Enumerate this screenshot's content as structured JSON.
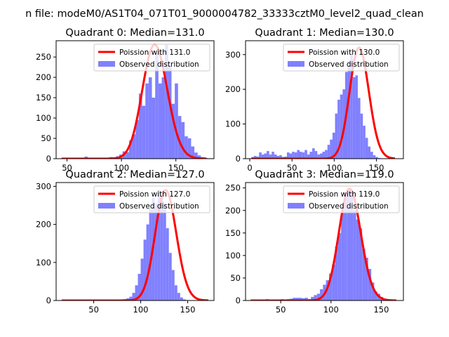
{
  "figure": {
    "title": "n file: modeM0/AS1T04_071T01_9000004782_33333cztM0_level2_quad_clean",
    "colors": {
      "hist": "#8080ff",
      "fit": "#ff0000",
      "axes": "#000000",
      "background": "#ffffff"
    }
  },
  "chart_data": [
    {
      "type": "bar",
      "title": "Quadrant 0: Median=131.0",
      "median": 131.0,
      "xlim": [
        40,
        185
      ],
      "ylim": [
        0,
        290
      ],
      "xticks": [
        50,
        100,
        150
      ],
      "yticks": [
        0,
        50,
        100,
        150,
        200,
        250
      ],
      "legend": {
        "position": "top-right",
        "entries": [
          "Poission with 131.0",
          "Observed distribution"
        ]
      },
      "hist": {
        "bin_start": 86,
        "bin_width": 3,
        "values": [
          2,
          4,
          3,
          6,
          10,
          18,
          16,
          45,
          60,
          95,
          160,
          130,
          185,
          200,
          150,
          260,
          185,
          200,
          280,
          230,
          135,
          185,
          105,
          90,
          55,
          50,
          30,
          15,
          8,
          4,
          2,
          1,
          1
        ]
      },
      "hist_baseline": [
        {
          "x": 66,
          "value": 5
        }
      ],
      "fit": {
        "label": "Poission with 131.0",
        "mean": 131.0,
        "peak": 280,
        "x_range": [
          45,
          178
        ]
      }
    },
    {
      "type": "bar",
      "title": "Quadrant 1: Median=130.0",
      "median": 130.0,
      "xlim": [
        -5,
        182
      ],
      "ylim": [
        0,
        340
      ],
      "xticks": [
        0,
        50,
        100,
        150
      ],
      "yticks": [
        0,
        100,
        200,
        300
      ],
      "legend": {
        "position": "top-right",
        "entries": [
          "Poission with 130.0",
          "Observed distribution"
        ]
      },
      "hist": {
        "bin_start": 2,
        "bin_width": 3,
        "values": [
          5,
          8,
          6,
          18,
          12,
          15,
          22,
          12,
          20,
          12,
          8,
          10,
          5,
          6,
          18,
          15,
          20,
          18,
          25,
          20,
          18,
          25,
          12,
          20,
          30,
          22,
          12,
          15,
          20,
          25,
          40,
          55,
          75,
          130,
          170,
          185,
          200,
          250,
          280,
          300,
          235,
          240,
          175,
          130,
          95,
          60,
          35,
          20,
          10,
          5,
          2
        ]
      },
      "fit": {
        "label": "Poission with 130.0",
        "mean": 130.0,
        "peak": 320,
        "x_range": [
          2,
          172
        ]
      }
    },
    {
      "type": "bar",
      "title": "Quadrant 2: Median=127.0",
      "median": 127.0,
      "xlim": [
        10,
        178
      ],
      "ylim": [
        0,
        310
      ],
      "xticks": [
        50,
        100,
        150
      ],
      "yticks": [
        0,
        100,
        200,
        300
      ],
      "legend": {
        "position": "top-right",
        "entries": [
          "Poission with 127.0",
          "Observed distribution"
        ]
      },
      "hist": {
        "bin_start": 70,
        "bin_width": 3,
        "values": [
          2,
          1,
          2,
          3,
          4,
          6,
          10,
          20,
          40,
          70,
          110,
          160,
          200,
          240,
          270,
          255,
          290,
          270,
          255,
          190,
          125,
          80,
          40,
          20,
          8,
          3,
          1
        ]
      },
      "fit": {
        "label": "Poission with 127.0",
        "mean": 127.0,
        "peak": 290,
        "x_range": [
          16,
          172
        ]
      }
    },
    {
      "type": "bar",
      "title": "Quadrant 3: Median=119.0",
      "median": 119.0,
      "xlim": [
        15,
        172
      ],
      "ylim": [
        0,
        262
      ],
      "xticks": [
        50,
        100,
        150
      ],
      "yticks": [
        0,
        50,
        100,
        150,
        200,
        250
      ],
      "legend": {
        "position": "top-right",
        "entries": [
          "Poission with 119.0",
          "Observed distribution"
        ]
      },
      "hist": {
        "bin_start": 20,
        "bin_width": 3,
        "values": [
          1,
          1,
          2,
          1,
          2,
          3,
          1,
          2,
          2,
          2,
          3,
          2,
          3,
          4,
          6,
          6,
          6,
          5,
          6,
          3,
          8,
          12,
          15,
          25,
          35,
          45,
          60,
          80,
          120,
          150,
          200,
          240,
          250,
          245,
          200,
          180,
          160,
          115,
          95,
          70,
          40,
          20,
          15,
          8,
          4,
          2,
          1,
          1
        ]
      },
      "fit": {
        "label": "Poission with 119.0",
        "mean": 119.0,
        "peak": 248,
        "x_range": [
          20,
          165
        ]
      }
    }
  ]
}
